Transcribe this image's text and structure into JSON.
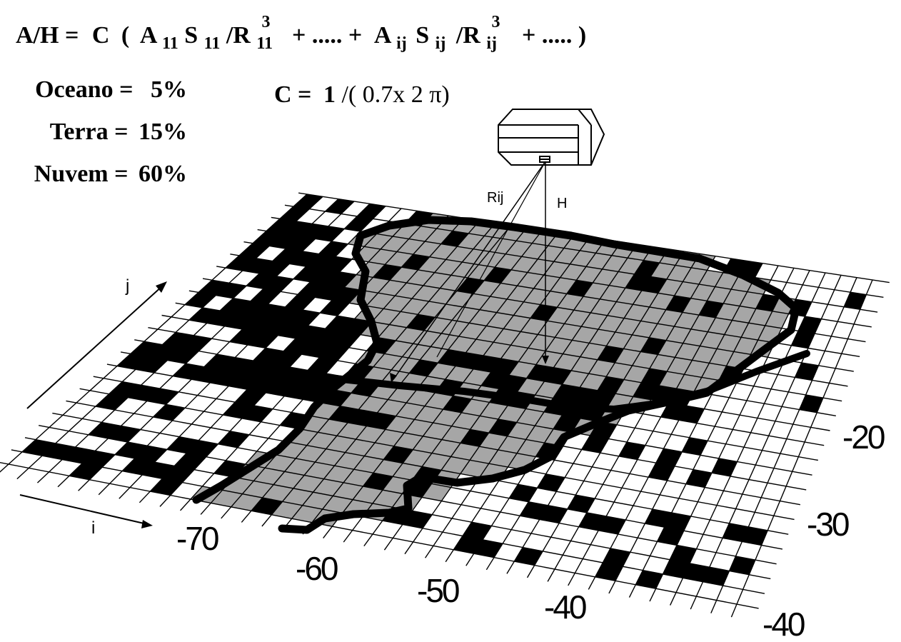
{
  "formula": {
    "lhs": "A/H =",
    "c": "C",
    "open_paren": "(",
    "a": "A",
    "a_sub": "11",
    "s": "S",
    "s_sub": "11",
    "slash_r": "/R",
    "r_sub": "11",
    "r_sup": "3",
    "plus_dots_1": "+ ..... +",
    "a_ij": "A",
    "a_ij_sub": "ij",
    "s_ij": "S",
    "s_ij_sub": "ij",
    "slash_r_ij": "/R",
    "r_ij_sub": "ij",
    "r_ij_sup": "3",
    "plus_dots_2": "+ ..... )"
  },
  "constant": {
    "label": "C =",
    "one": "1",
    "expr": "/( 0.7x 2 π)"
  },
  "albedos": [
    {
      "label": "Oceano =",
      "value": "5%"
    },
    {
      "label": "Terra =",
      "value": "15%"
    },
    {
      "label": "Nuvem =",
      "value": "60%"
    }
  ],
  "satellite": {
    "ray_label": "Rij",
    "height_label": "H"
  },
  "axes": {
    "j_label": "j",
    "i_label": "i",
    "lon_ticks": [
      "-70",
      "-60",
      "-50",
      "-40"
    ],
    "lat_ticks": [
      "-20",
      "-30",
      "-40"
    ]
  },
  "colors": {
    "ocean": "#ffffff",
    "land": "#a6a6a6",
    "cloud": "#000000",
    "grid": "#000000",
    "coast": "#000000"
  }
}
